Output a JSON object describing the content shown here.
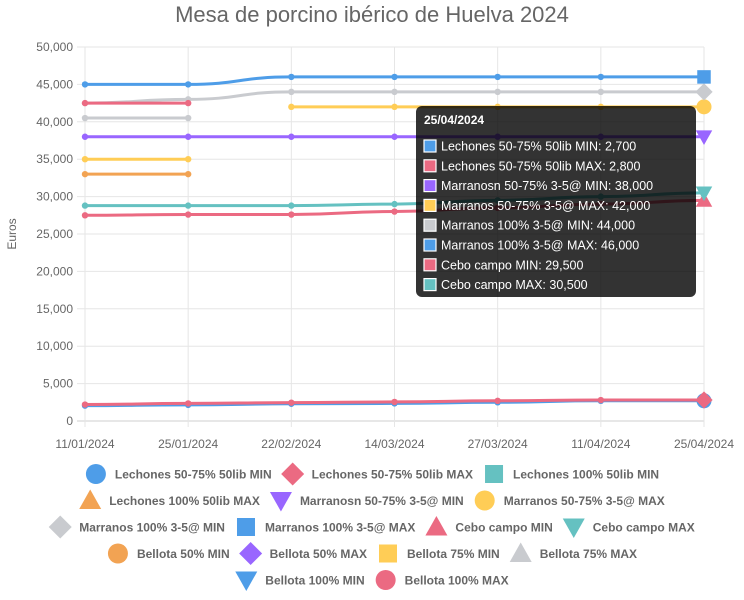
{
  "chart_data": {
    "type": "line",
    "title": "Mesa de porcino ibérico de Huelva 2024",
    "ylabel": "Euros",
    "xlabel": "",
    "categories": [
      "11/01/2024",
      "25/01/2024",
      "22/02/2024",
      "14/03/2024",
      "27/03/2024",
      "11/04/2024",
      "25/04/2024"
    ],
    "ylim": [
      0,
      50000
    ],
    "y_ticks": [
      0,
      5000,
      10000,
      15000,
      20000,
      25000,
      30000,
      35000,
      40000,
      45000,
      50000
    ],
    "y_tick_labels": [
      "0",
      "5,000",
      "10,000",
      "15,000",
      "20,000",
      "25,000",
      "30,000",
      "35,000",
      "40,000",
      "45,000",
      "50,000"
    ],
    "grid": true,
    "legend_position": "bottom",
    "series": [
      {
        "name": "Lechones 50-75% 50lib MIN",
        "color": "#4e9de8",
        "marker": "circle",
        "values": [
          2050,
          2150,
          2300,
          2350,
          2500,
          2700,
          2700
        ]
      },
      {
        "name": "Lechones 50-75% 50lib MAX",
        "color": "#eb6a82",
        "marker": "rectRot",
        "values": [
          2200,
          2350,
          2450,
          2550,
          2700,
          2800,
          2800
        ]
      },
      {
        "name": "Lechones 100% 50lib MIN",
        "color": "#65c1c1",
        "marker": "rect",
        "values": [
          null,
          null,
          null,
          null,
          null,
          null,
          null
        ]
      },
      {
        "name": "Lechones 100% 50lib MAX",
        "color": "#f2a353",
        "marker": "triangle",
        "values": [
          null,
          null,
          null,
          null,
          null,
          null,
          null
        ]
      },
      {
        "name": "Marranosn  50-75% 3-5@ MIN",
        "color": "#9966ff",
        "marker": "triangleDown",
        "values": [
          38000,
          38000,
          38000,
          38000,
          38000,
          38000,
          38000
        ]
      },
      {
        "name": "Marranos 50-75% 3-5@ MAX",
        "color": "#ffcd56",
        "marker": "circle",
        "values": [
          null,
          null,
          42000,
          42000,
          42000,
          42000,
          42000
        ]
      },
      {
        "name": "Marranos 100% 3-5@ MIN",
        "color": "#c9cbcf",
        "marker": "rectRot",
        "values": [
          42500,
          43000,
          44000,
          44000,
          44000,
          44000,
          44000
        ]
      },
      {
        "name": "Marranos 100% 3-5@ MAX",
        "color": "#4e9de8",
        "marker": "rect",
        "values": [
          45000,
          45000,
          46000,
          46000,
          46000,
          46000,
          46000
        ]
      },
      {
        "name": "Cebo campo MIN",
        "color": "#eb6a82",
        "marker": "triangle",
        "values": [
          27500,
          27600,
          27600,
          28000,
          28500,
          29000,
          29500
        ]
      },
      {
        "name": "Cebo campo MAX",
        "color": "#65c1c1",
        "marker": "triangleDown",
        "values": [
          28800,
          28800,
          28800,
          29000,
          29500,
          30000,
          30500
        ]
      },
      {
        "name": "Bellota 50% MIN",
        "color": "#f2a353",
        "marker": "circle",
        "values": [
          33000,
          33000,
          null,
          null,
          null,
          null,
          null
        ]
      },
      {
        "name": "Bellota 50% MAX",
        "color": "#9966ff",
        "marker": "rectRot",
        "values": [
          null,
          null,
          null,
          null,
          null,
          null,
          null
        ]
      },
      {
        "name": "Bellota 75% MIN",
        "color": "#ffcd56",
        "marker": "rect",
        "values": [
          35000,
          35000,
          null,
          null,
          null,
          null,
          null
        ]
      },
      {
        "name": "Bellota 75% MAX",
        "color": "#c9cbcf",
        "marker": "triangle",
        "values": [
          40500,
          40500,
          null,
          null,
          null,
          null,
          null
        ]
      },
      {
        "name": "Bellota 100% MIN",
        "color": "#4e9de8",
        "marker": "triangleDown",
        "values": [
          null,
          null,
          null,
          null,
          null,
          null,
          null
        ]
      },
      {
        "name": "Bellota 100% MAX",
        "color": "#eb6a82",
        "marker": "circle",
        "values": [
          42500,
          42500,
          null,
          null,
          null,
          null,
          null
        ]
      }
    ],
    "tooltip": {
      "title": "25/04/2024",
      "items": [
        {
          "text": "Lechones 50-75% 50lib MIN: 2,700",
          "color": "#4e9de8"
        },
        {
          "text": "Lechones 50-75% 50lib MAX: 2,800",
          "color": "#eb6a82"
        },
        {
          "text": "Marranosn  50-75% 3-5@ MIN: 38,000",
          "color": "#9966ff"
        },
        {
          "text": "Marranos 50-75% 3-5@ MAX: 42,000",
          "color": "#ffcd56"
        },
        {
          "text": "Marranos 100% 3-5@ MIN: 44,000",
          "color": "#c9cbcf"
        },
        {
          "text": "Marranos 100% 3-5@ MAX: 46,000",
          "color": "#4e9de8"
        },
        {
          "text": "Cebo campo MIN: 29,500",
          "color": "#eb6a82"
        },
        {
          "text": "Cebo campo MAX: 30,500",
          "color": "#65c1c1"
        }
      ]
    }
  }
}
